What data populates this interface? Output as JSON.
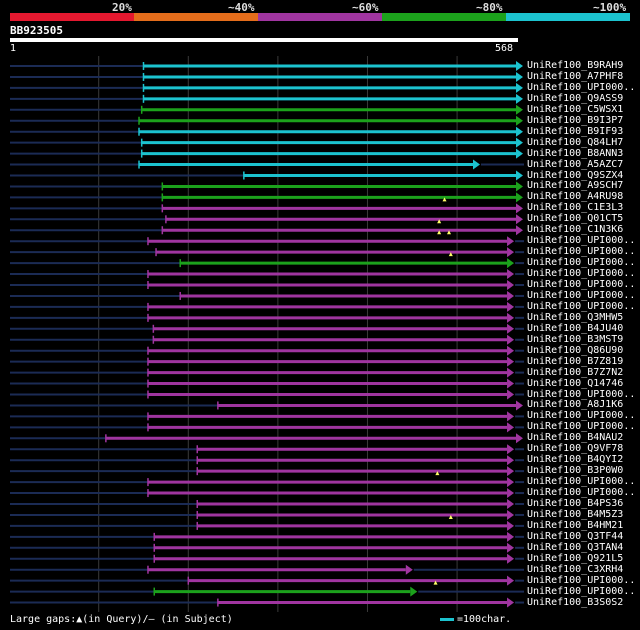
{
  "legend": {
    "segments": [
      {
        "label": "20%",
        "color": "#e4182f"
      },
      {
        "label": "~40%",
        "color": "#e46d1b"
      },
      {
        "label": "~60%",
        "color": "#a035a0"
      },
      {
        "label": "~80%",
        "color": "#1ca21c"
      },
      {
        "label": "~100%",
        "color": "#1cc3cf"
      }
    ]
  },
  "query": {
    "name": "BB923505",
    "start": "1",
    "end": "568"
  },
  "hits": [
    {
      "name": "UniRef100_B9RAH9",
      "start": 150,
      "end": 568,
      "color": "#1cc3cf",
      "markers": []
    },
    {
      "name": "UniRef100_A7PHF8",
      "start": 150,
      "end": 568,
      "color": "#1cc3cf",
      "markers": []
    },
    {
      "name": "UniRef100_UPI000..",
      "start": 150,
      "end": 568,
      "color": "#1cc3cf",
      "markers": []
    },
    {
      "name": "UniRef100_Q9ASS9",
      "start": 150,
      "end": 568,
      "color": "#1cc3cf",
      "markers": []
    },
    {
      "name": "UniRef100_C5WSX1",
      "start": 148,
      "end": 568,
      "color": "#1ca21c",
      "markers": []
    },
    {
      "name": "UniRef100_B9I3P7",
      "start": 145,
      "end": 568,
      "color": "#1ca21c",
      "markers": []
    },
    {
      "name": "UniRef100_B9IF93",
      "start": 145,
      "end": 568,
      "color": "#1cc3cf",
      "markers": []
    },
    {
      "name": "UniRef100_Q84LH7",
      "start": 148,
      "end": 568,
      "color": "#1cc3cf",
      "markers": []
    },
    {
      "name": "UniRef100_B8ANN3",
      "start": 148,
      "end": 568,
      "color": "#1cc3cf",
      "markers": []
    },
    {
      "name": "UniRef100_A5AZC7",
      "start": 145,
      "end": 520,
      "color": "#1cc3cf",
      "markers": []
    },
    {
      "name": "UniRef100_Q9SZX4",
      "start": 262,
      "end": 568,
      "color": "#1cc3cf",
      "markers": []
    },
    {
      "name": "UniRef100_A9SCH7",
      "start": 171,
      "end": 568,
      "color": "#1ca21c",
      "markers": []
    },
    {
      "name": "UniRef100_A4RU98",
      "start": 171,
      "end": 568,
      "color": "#1ca21c",
      "markers": [
        486
      ]
    },
    {
      "name": "UniRef100_C1E3L3",
      "start": 171,
      "end": 568,
      "color": "#a035a0",
      "markers": []
    },
    {
      "name": "UniRef100_Q01CT5",
      "start": 175,
      "end": 568,
      "color": "#a035a0",
      "markers": [
        480
      ]
    },
    {
      "name": "UniRef100_C1N3K6",
      "start": 171,
      "end": 568,
      "color": "#a035a0",
      "markers": [
        480,
        491
      ]
    },
    {
      "name": "UniRef100_UPI000..",
      "start": 155,
      "end": 558,
      "color": "#a035a0",
      "markers": []
    },
    {
      "name": "UniRef100_UPI000..",
      "start": 164,
      "end": 558,
      "color": "#a035a0",
      "markers": [
        493
      ]
    },
    {
      "name": "UniRef100_UPI000..",
      "start": 191,
      "end": 558,
      "color": "#1ca21c",
      "markers": []
    },
    {
      "name": "UniRef100_UPI000..",
      "start": 155,
      "end": 558,
      "color": "#a035a0",
      "markers": []
    },
    {
      "name": "UniRef100_UPI000..",
      "start": 155,
      "end": 558,
      "color": "#a035a0",
      "markers": []
    },
    {
      "name": "UniRef100_UPI000..",
      "start": 191,
      "end": 558,
      "color": "#a035a0",
      "markers": []
    },
    {
      "name": "UniRef100_UPI000..",
      "start": 155,
      "end": 558,
      "color": "#a035a0",
      "markers": []
    },
    {
      "name": "UniRef100_Q3MHW5",
      "start": 155,
      "end": 558,
      "color": "#a035a0",
      "markers": []
    },
    {
      "name": "UniRef100_B4JU40",
      "start": 161,
      "end": 558,
      "color": "#a035a0",
      "markers": []
    },
    {
      "name": "UniRef100_B3MST9",
      "start": 161,
      "end": 558,
      "color": "#a035a0",
      "markers": []
    },
    {
      "name": "UniRef100_Q86U90",
      "start": 155,
      "end": 558,
      "color": "#a035a0",
      "markers": []
    },
    {
      "name": "UniRef100_B7Z819",
      "start": 155,
      "end": 558,
      "color": "#a035a0",
      "markers": []
    },
    {
      "name": "UniRef100_B7Z7N2",
      "start": 155,
      "end": 558,
      "color": "#a035a0",
      "markers": []
    },
    {
      "name": "UniRef100_Q14746",
      "start": 155,
      "end": 558,
      "color": "#a035a0",
      "markers": []
    },
    {
      "name": "UniRef100_UPI000..",
      "start": 155,
      "end": 558,
      "color": "#a035a0",
      "markers": []
    },
    {
      "name": "UniRef100_A8J1K6",
      "start": 233,
      "end": 568,
      "color": "#a035a0",
      "markers": []
    },
    {
      "name": "UniRef100_UPI000..",
      "start": 155,
      "end": 558,
      "color": "#a035a0",
      "markers": []
    },
    {
      "name": "UniRef100_UPI000..",
      "start": 155,
      "end": 558,
      "color": "#a035a0",
      "markers": []
    },
    {
      "name": "UniRef100_B4NAU2",
      "start": 108,
      "end": 568,
      "color": "#a035a0",
      "markers": []
    },
    {
      "name": "UniRef100_Q9VF78",
      "start": 210,
      "end": 558,
      "color": "#a035a0",
      "markers": []
    },
    {
      "name": "UniRef100_B4QYI2",
      "start": 210,
      "end": 558,
      "color": "#a035a0",
      "markers": []
    },
    {
      "name": "UniRef100_B3P0W0",
      "start": 210,
      "end": 558,
      "color": "#a035a0",
      "markers": [
        478
      ]
    },
    {
      "name": "UniRef100_UPI000..",
      "start": 155,
      "end": 558,
      "color": "#a035a0",
      "markers": []
    },
    {
      "name": "UniRef100_UPI000..",
      "start": 155,
      "end": 558,
      "color": "#a035a0",
      "markers": []
    },
    {
      "name": "UniRef100_B4PS36",
      "start": 210,
      "end": 558,
      "color": "#a035a0",
      "markers": []
    },
    {
      "name": "UniRef100_B4M5Z3",
      "start": 210,
      "end": 558,
      "color": "#a035a0",
      "markers": [
        493
      ]
    },
    {
      "name": "UniRef100_B4HM21",
      "start": 210,
      "end": 558,
      "color": "#a035a0",
      "markers": []
    },
    {
      "name": "UniRef100_Q3TF44",
      "start": 162,
      "end": 558,
      "color": "#a035a0",
      "markers": []
    },
    {
      "name": "UniRef100_Q3TAN4",
      "start": 162,
      "end": 558,
      "color": "#a035a0",
      "markers": []
    },
    {
      "name": "UniRef100_Q921L5",
      "start": 162,
      "end": 558,
      "color": "#a035a0",
      "markers": []
    },
    {
      "name": "UniRef100_C3XRH4",
      "start": 155,
      "end": 445,
      "color": "#a035a0",
      "markers": []
    },
    {
      "name": "UniRef100_UPI000..",
      "start": 200,
      "end": 558,
      "color": "#a035a0",
      "markers": [
        476
      ]
    },
    {
      "name": "UniRef100_UPI000..",
      "start": 162,
      "end": 450,
      "color": "#1ca21c",
      "markers": []
    },
    {
      "name": "UniRef100_B3S0S2",
      "start": 233,
      "end": 558,
      "color": "#a035a0",
      "markers": []
    }
  ],
  "footer": {
    "gaps_text": "Large gaps:▲(in Query)/— (in Subject)",
    "scale_text": "=100char."
  }
}
